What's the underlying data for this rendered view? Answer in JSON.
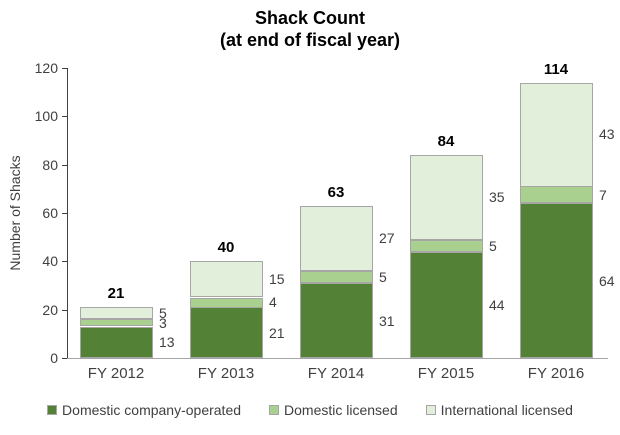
{
  "chart_data": {
    "type": "bar",
    "stacked": true,
    "title": "Shack Count",
    "subtitle": "(at end of fiscal year)",
    "xlabel": "",
    "ylabel": "Number of Shacks",
    "ylim": [
      0,
      120
    ],
    "ytick_step": 20,
    "grid": false,
    "legend_position": "bottom",
    "categories": [
      "FY 2012",
      "FY 2013",
      "FY 2014",
      "FY 2015",
      "FY 2016"
    ],
    "series": [
      {
        "name": "Domestic company-operated",
        "color": "#538135",
        "values": [
          13,
          21,
          31,
          44,
          64
        ]
      },
      {
        "name": "Domestic licensed",
        "color": "#a9d08e",
        "values": [
          3,
          4,
          5,
          5,
          7
        ]
      },
      {
        "name": "International licensed",
        "color": "#e2efda",
        "values": [
          5,
          15,
          27,
          35,
          43
        ]
      }
    ],
    "totals": [
      21,
      40,
      63,
      84,
      114
    ],
    "segment_border_color": "#a6a6a6",
    "y_axis_color": "#404040",
    "x_axis_color": "#a6a6a6",
    "label_color": "#404040"
  }
}
